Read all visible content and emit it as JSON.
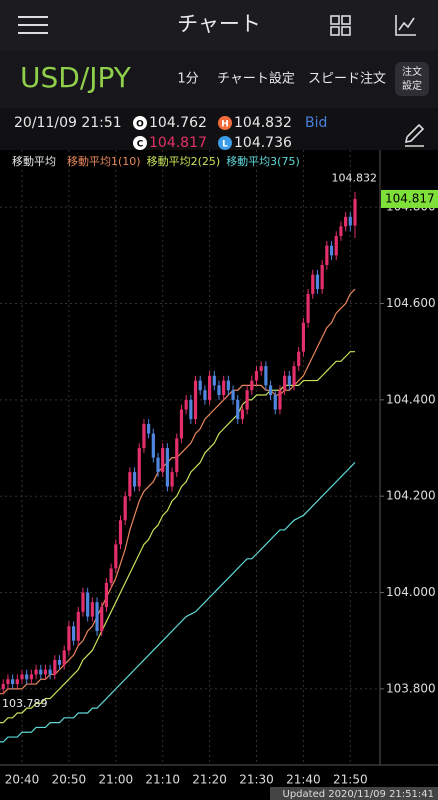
{
  "header": {
    "title": "チャート"
  },
  "toolbar": {
    "symbol": "USD/JPY",
    "interval": "1分",
    "chart_settings": "チャート設定",
    "speed_order": "スピード注文",
    "order_settings": [
      "注文",
      "設定"
    ]
  },
  "quote": {
    "time": "20/11/09 21:51",
    "icons": [
      "O",
      "H",
      "C",
      "L"
    ],
    "side": "Bid"
  },
  "chart_data": {
    "type": "candlestick",
    "legend_title": "移動平均",
    "categories": [
      null,
      null,
      null,
      null,
      null,
      "20:40",
      null,
      null,
      null,
      null,
      null,
      null,
      null,
      null,
      null,
      "20:50",
      null,
      null,
      null,
      null,
      null,
      null,
      null,
      null,
      null,
      "21:00",
      null,
      null,
      null,
      null,
      null,
      null,
      null,
      null,
      null,
      "21:10",
      null,
      null,
      null,
      null,
      null,
      null,
      null,
      null,
      null,
      "21:20",
      null,
      null,
      null,
      null,
      null,
      null,
      null,
      null,
      null,
      "21:30",
      null,
      null,
      null,
      null,
      null,
      null,
      null,
      null,
      null,
      "21:40",
      null,
      null,
      null,
      null,
      null,
      null,
      null,
      null,
      null,
      "21:50",
      null
    ],
    "open": [
      103.79,
      103.8,
      103.81,
      103.82,
      103.81,
      103.82,
      103.83,
      103.82,
      103.83,
      103.84,
      103.83,
      103.84,
      103.83,
      103.86,
      103.85,
      103.88,
      103.93,
      103.9,
      103.96,
      104.0,
      103.95,
      103.98,
      103.92,
      103.97,
      104.02,
      104.05,
      104.1,
      104.15,
      104.2,
      104.25,
      104.22,
      104.3,
      104.35,
      104.33,
      104.28,
      104.25,
      104.3,
      104.22,
      104.25,
      104.32,
      104.38,
      104.4,
      104.36,
      104.44,
      104.42,
      104.4,
      104.45,
      104.43,
      104.41,
      104.44,
      104.42,
      104.4,
      104.36,
      104.38,
      104.42,
      104.44,
      104.46,
      104.47,
      104.43,
      104.41,
      104.38,
      104.42,
      104.45,
      104.43,
      104.47,
      104.5,
      104.56,
      104.62,
      104.66,
      104.63,
      104.68,
      104.72,
      104.7,
      104.74,
      104.76,
      104.78,
      104.762
    ],
    "high": [
      103.81,
      103.82,
      103.83,
      103.83,
      103.83,
      103.84,
      103.84,
      103.84,
      103.85,
      103.85,
      103.85,
      103.85,
      103.87,
      103.87,
      103.89,
      103.94,
      103.94,
      103.97,
      104.01,
      104.01,
      103.99,
      103.99,
      103.98,
      104.03,
      104.06,
      104.11,
      104.16,
      104.21,
      104.26,
      104.26,
      104.31,
      104.36,
      104.36,
      104.34,
      104.29,
      104.31,
      104.31,
      104.26,
      104.33,
      104.39,
      104.41,
      104.41,
      104.45,
      104.45,
      104.43,
      104.46,
      104.46,
      104.44,
      104.45,
      104.45,
      104.43,
      104.41,
      104.39,
      104.43,
      104.45,
      104.47,
      104.48,
      104.48,
      104.44,
      104.42,
      104.43,
      104.46,
      104.46,
      104.48,
      104.51,
      104.57,
      104.63,
      104.67,
      104.67,
      104.69,
      104.73,
      104.73,
      104.75,
      104.77,
      104.79,
      104.79,
      104.832
    ],
    "low": [
      103.789,
      103.79,
      103.8,
      103.8,
      103.8,
      103.81,
      103.81,
      103.81,
      103.82,
      103.82,
      103.82,
      103.82,
      103.82,
      103.84,
      103.84,
      103.87,
      103.89,
      103.89,
      103.95,
      103.94,
      103.94,
      103.91,
      103.91,
      103.96,
      104.01,
      104.04,
      104.09,
      104.14,
      104.19,
      104.21,
      104.21,
      104.29,
      104.32,
      104.27,
      104.24,
      104.24,
      104.21,
      104.21,
      104.24,
      104.31,
      104.37,
      104.35,
      104.35,
      104.41,
      104.39,
      104.39,
      104.42,
      104.4,
      104.4,
      104.41,
      104.39,
      104.35,
      104.35,
      104.37,
      104.41,
      104.43,
      104.45,
      104.42,
      104.4,
      104.37,
      104.37,
      104.41,
      104.42,
      104.42,
      104.46,
      104.49,
      104.55,
      104.61,
      104.62,
      104.62,
      104.67,
      104.69,
      104.69,
      104.73,
      104.75,
      104.75,
      104.736
    ],
    "close": [
      103.8,
      103.81,
      103.82,
      103.81,
      103.82,
      103.83,
      103.82,
      103.83,
      103.84,
      103.83,
      103.84,
      103.83,
      103.86,
      103.85,
      103.88,
      103.93,
      103.9,
      103.96,
      104.0,
      103.95,
      103.98,
      103.92,
      103.97,
      104.02,
      104.05,
      104.1,
      104.15,
      104.2,
      104.25,
      104.22,
      104.3,
      104.35,
      104.33,
      104.28,
      104.25,
      104.3,
      104.22,
      104.25,
      104.32,
      104.38,
      104.4,
      104.36,
      104.44,
      104.42,
      104.4,
      104.45,
      104.43,
      104.41,
      104.44,
      104.42,
      104.4,
      104.36,
      104.38,
      104.42,
      104.44,
      104.46,
      104.47,
      104.43,
      104.41,
      104.38,
      104.42,
      104.45,
      104.43,
      104.47,
      104.5,
      104.56,
      104.62,
      104.66,
      104.63,
      104.68,
      104.72,
      104.7,
      104.74,
      104.76,
      104.78,
      104.762,
      104.817
    ],
    "up_color": "#e3306b",
    "down_color": "#4f86e0",
    "series": [
      {
        "name": "移動平均1(10)",
        "color": "#e8875a",
        "values": [
          103.79,
          103.79,
          103.8,
          103.8,
          103.8,
          103.8,
          103.81,
          103.81,
          103.81,
          103.82,
          103.82,
          103.83,
          103.83,
          103.84,
          103.85,
          103.86,
          103.87,
          103.89,
          103.9,
          103.92,
          103.93,
          103.95,
          103.97,
          103.99,
          104.01,
          104.03,
          104.06,
          104.09,
          104.13,
          104.16,
          104.19,
          104.21,
          104.22,
          104.23,
          104.25,
          104.26,
          104.27,
          104.28,
          104.28,
          104.29,
          104.3,
          104.31,
          104.33,
          104.34,
          104.36,
          104.37,
          104.38,
          104.39,
          104.4,
          104.41,
          104.42,
          104.42,
          104.43,
          104.43,
          104.43,
          104.43,
          104.43,
          104.42,
          104.42,
          104.41,
          104.41,
          104.42,
          104.42,
          104.43,
          104.44,
          104.45,
          104.47,
          104.49,
          104.51,
          104.53,
          104.55,
          104.56,
          104.58,
          104.59,
          104.6,
          104.62,
          104.63
        ]
      },
      {
        "name": "移動平均2(25)",
        "color": "#c6e35a",
        "values": [
          103.73,
          103.73,
          103.74,
          103.74,
          103.75,
          103.75,
          103.76,
          103.76,
          103.77,
          103.77,
          103.78,
          103.78,
          103.79,
          103.8,
          103.81,
          103.82,
          103.83,
          103.84,
          103.86,
          103.87,
          103.88,
          103.9,
          103.92,
          103.94,
          103.96,
          103.98,
          104.0,
          104.02,
          104.04,
          104.06,
          104.08,
          104.1,
          104.11,
          104.13,
          104.14,
          104.16,
          104.17,
          104.19,
          104.2,
          104.22,
          104.23,
          104.25,
          104.26,
          104.27,
          104.29,
          104.3,
          104.31,
          104.33,
          104.34,
          104.35,
          104.36,
          104.37,
          104.39,
          104.4,
          104.4,
          104.41,
          104.41,
          104.41,
          104.42,
          104.42,
          104.42,
          104.43,
          104.43,
          104.43,
          104.43,
          104.44,
          104.44,
          104.44,
          104.44,
          104.45,
          104.46,
          104.47,
          104.48,
          104.48,
          104.49,
          104.5,
          104.5
        ]
      },
      {
        "name": "移動平均3(75)",
        "color": "#5fd8d8",
        "values": [
          103.69,
          103.69,
          103.7,
          103.7,
          103.7,
          103.71,
          103.71,
          103.71,
          103.72,
          103.72,
          103.72,
          103.73,
          103.73,
          103.73,
          103.74,
          103.74,
          103.74,
          103.75,
          103.75,
          103.75,
          103.76,
          103.76,
          103.77,
          103.78,
          103.79,
          103.8,
          103.81,
          103.82,
          103.83,
          103.84,
          103.85,
          103.86,
          103.87,
          103.88,
          103.89,
          103.9,
          103.91,
          103.92,
          103.93,
          103.94,
          103.95,
          103.955,
          103.96,
          103.97,
          103.98,
          103.99,
          104.0,
          104.01,
          104.02,
          104.03,
          104.04,
          104.05,
          104.06,
          104.07,
          104.07,
          104.08,
          104.09,
          104.1,
          104.11,
          104.12,
          104.13,
          104.13,
          104.14,
          104.15,
          104.155,
          104.16,
          104.17,
          104.18,
          104.19,
          104.2,
          104.21,
          104.22,
          104.23,
          104.24,
          104.25,
          104.26,
          104.27
        ]
      }
    ],
    "ylim": [
      103.642,
      104.846
    ],
    "yticks": [
      {
        "value": 103.8,
        "label": "103.800"
      },
      {
        "value": 104.0,
        "label": "104.000"
      },
      {
        "value": 104.2,
        "label": "104.200"
      },
      {
        "value": 104.4,
        "label": "104.400"
      },
      {
        "value": 104.6,
        "label": "104.600"
      },
      {
        "value": 104.8,
        "label": "104.800"
      }
    ],
    "grid": true
  },
  "footer": {
    "updated": "Updated  2020/11/09 21:51:41"
  }
}
